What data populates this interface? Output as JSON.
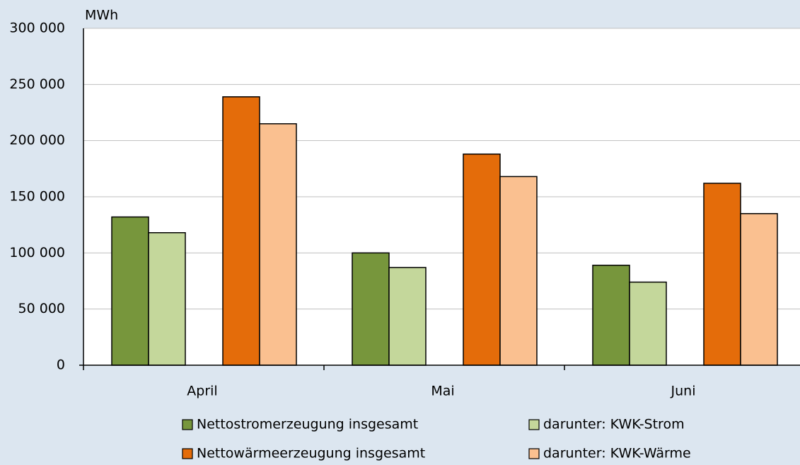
{
  "chart_data": {
    "type": "bar",
    "y_axis_label": "MWh",
    "categories": [
      "April",
      "Mai",
      "Juni"
    ],
    "series": [
      {
        "name": "Nettostromerzeugung insgesamt",
        "color": "#77963c",
        "values": [
          132000,
          100000,
          89000
        ]
      },
      {
        "name": "darunter: KWK-Strom",
        "color": "#c4d79b",
        "values": [
          118000,
          87000,
          74000
        ]
      },
      {
        "name": "Nettowärmeerzeugung insgesamt",
        "color": "#e46c0a",
        "values": [
          239000,
          188000,
          162000
        ]
      },
      {
        "name": "darunter: KWK-Wärme",
        "color": "#fac090",
        "values": [
          215000,
          168000,
          135000
        ]
      }
    ],
    "ylim": [
      0,
      300000
    ],
    "yticks": [
      0,
      {
        "value": 50000,
        "label": "50 000"
      },
      {
        "value": 100000,
        "label": "100 000"
      },
      {
        "value": 150000,
        "label": "150 000"
      },
      {
        "value": 200000,
        "label": "200 000"
      },
      {
        "value": 250000,
        "label": "250 000"
      },
      {
        "value": 300000,
        "label": "300 000"
      }
    ],
    "grid": true
  }
}
